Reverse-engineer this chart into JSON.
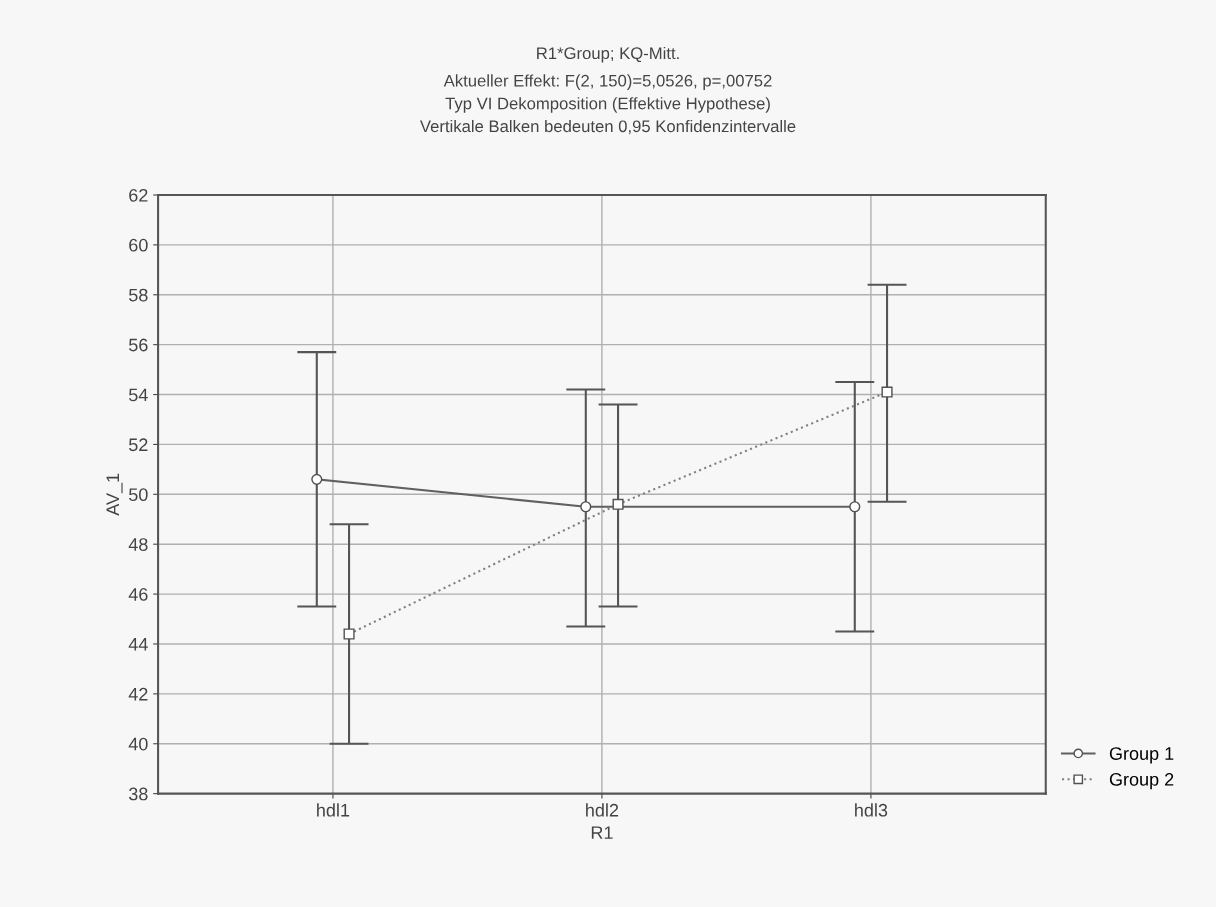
{
  "chart_data": {
    "type": "line",
    "title": "R1*Group; KQ-Mitt.",
    "subtitle": "Aktueller Effekt: F(2, 150)=5,0526, p=,00752\nTyp VI Dekomposition (Effektive Hypothese)\nVertikale Balken bedeuten 0,95 Konfidenzintervalle",
    "xlabel": "R1",
    "ylabel": "AV_1",
    "categories": [
      "hdl1",
      "hdl2",
      "hdl3"
    ],
    "series": [
      {
        "name": "Group 1",
        "color": "#606060",
        "marker": "circle",
        "line_style": "solid",
        "values": [
          50.6,
          49.5,
          49.5
        ],
        "errors": [
          [
            45.5,
            55.7
          ],
          [
            44.7,
            54.2
          ],
          [
            44.5,
            54.5
          ]
        ]
      },
      {
        "name": "Group 2",
        "color": "#808080",
        "marker": "square",
        "line_style": "dotted",
        "values": [
          44.4,
          49.6,
          54.1
        ],
        "errors": [
          [
            40.0,
            48.8
          ],
          [
            45.5,
            53.6
          ],
          [
            49.7,
            58.4
          ]
        ]
      }
    ],
    "ylim": [
      38,
      62
    ],
    "yticks": [
      38,
      40,
      42,
      44,
      46,
      48,
      50,
      52,
      54,
      56,
      58,
      60,
      62
    ],
    "grid": true,
    "legend": "bottom right"
  }
}
